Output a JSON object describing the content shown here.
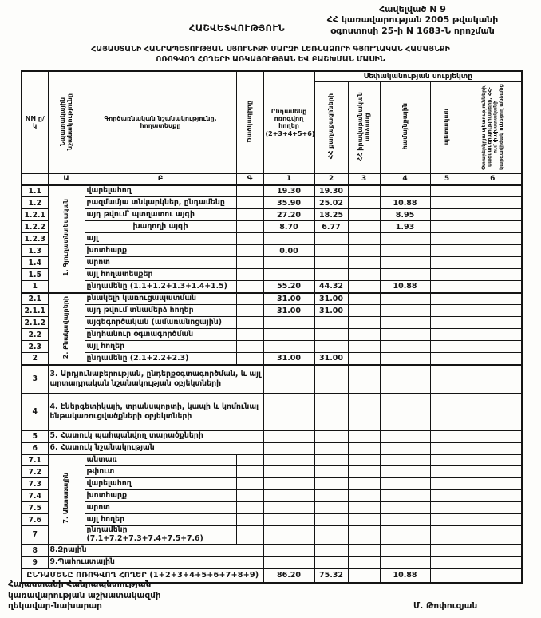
{
  "header": {
    "appendix_line1": "Հավելված N 9",
    "appendix_line2": "ՀՀ կառավարության 2005 թվականի",
    "appendix_line3": "օգոստոսի 25-ի N 1683-Ն որոշման",
    "report_label": "ՀԱՇՎԵՏՎՈՒԹՅՈՒՆ",
    "title_line1": "ՀԱՅԱՍՏԱՆԻ ՀԱՆՐԱՊԵՏՈՒԹՅԱՆ ՍՅՈՒՆԻՔԻ ՄԱՐԶԻ ԼԵՌՆԱՁՈՐԻ ԳՅՈՒՂԱԿԱՆ ՀԱՄԱՅՆՔԻ",
    "title_line2": "ՈՌՈԳՎՈՂ ՀՈՂԵՐԻ ԱՌԿԱՅՈՒԹՅԱՆ ԵՎ ԲԱՇԽՄԱՆ ՄԱՍԻՆ"
  },
  "table": {
    "ownership_header": "Սեփականության սուբյեկտը",
    "columns": {
      "nn": "NN ը/կ",
      "purpose": "Նպատակային նշանակությունը",
      "name": "Գործառնական նշանակությունը, հողատեսքը",
      "code": "Ծածկագիրը",
      "total": "Ընդամենը ոռոգվող հողեր (2+3+4+5+6)",
      "own_citizens": "ՀՀ քաղաքացիների",
      "own_legal": "ՀՀ իրավաբանական անձանց",
      "own_community": "համայնքային",
      "own_state": "պետական",
      "own_foreign": "Օտարերկրյա պետությունների, կազմակերպությունների, ՀՀ-ում փախստականի կարգավիճակ ունեցող անձանց"
    },
    "letter_row": [
      "",
      "Ա",
      "Բ",
      "Գ",
      "1",
      "2",
      "3",
      "4",
      "5",
      "6"
    ],
    "rows": [
      {
        "no": "1.1",
        "label": "վարելահող",
        "values": [
          "19.30",
          "19.30",
          "",
          "",
          "",
          ""
        ],
        "section": {
          "label": "1. Գյուղատնտեսական",
          "span": 9
        },
        "thick": true
      },
      {
        "no": "1.2",
        "label": "բազմամյա տնկարկներ, ընդամենը",
        "values": [
          "35.90",
          "25.02",
          "",
          "10.88",
          "",
          ""
        ]
      },
      {
        "no": "1.2.1",
        "label": "այդ թվում՝ պտղատու այգի",
        "values": [
          "27.20",
          "18.25",
          "",
          "8.95",
          "",
          ""
        ]
      },
      {
        "no": "1.2.2",
        "label": "խաղողի այգի",
        "align": "center",
        "values": [
          "8.70",
          "6.77",
          "",
          "1.93",
          "",
          ""
        ]
      },
      {
        "no": "1.2.3",
        "label": "այլ",
        "values": [
          "",
          "",
          "",
          "",
          "",
          ""
        ]
      },
      {
        "no": "1.3",
        "label": "խոտհարք",
        "values": [
          "0.00",
          "",
          "",
          "",
          "",
          ""
        ]
      },
      {
        "no": "1.4",
        "label": "արոտ",
        "values": [
          "",
          "",
          "",
          "",
          "",
          ""
        ]
      },
      {
        "no": "1.5",
        "label": "այլ հողատեսքեր",
        "values": [
          "",
          "",
          "",
          "",
          "",
          ""
        ]
      },
      {
        "no": "1",
        "label": "ընդամենը (1.1+1.2+1.3+1.4+1.5)",
        "values": [
          "55.20",
          "44.32",
          "",
          "10.88",
          "",
          ""
        ]
      },
      {
        "no": "2.1",
        "label": "բնակելի կառուցապատման",
        "values": [
          "31.00",
          "31.00",
          "",
          "",
          "",
          ""
        ],
        "section": {
          "label": "2. Բնակավայրերի",
          "span": 6
        },
        "thick": true
      },
      {
        "no": "2.1.1",
        "label": "այդ թվում տնամերձ հողեր",
        "values": [
          "31.00",
          "31.00",
          "",
          "",
          "",
          ""
        ]
      },
      {
        "no": "2.1.2",
        "label": "այգեգործական (ամառանոցային)",
        "values": [
          "",
          "",
          "",
          "",
          "",
          ""
        ]
      },
      {
        "no": "2.2",
        "label": "ընդհանուր օգտագործման",
        "values": [
          "",
          "",
          "",
          "",
          "",
          ""
        ]
      },
      {
        "no": "2.3",
        "label": "այլ հողեր",
        "values": [
          "",
          "",
          "",
          "",
          "",
          ""
        ]
      },
      {
        "no": "2",
        "label": "ընդամենը (2.1+2.2+2.3)",
        "values": [
          "31.00",
          "31.00",
          "",
          "",
          "",
          ""
        ]
      },
      {
        "no": "3",
        "label": "3. Արդյունաբերության, ընդերքօգտագործման, և այլ արտադրական նշանակության օբյեկտների",
        "wide": true,
        "h": 36,
        "thick": true,
        "values": [
          "",
          "",
          "",
          "",
          "",
          ""
        ]
      },
      {
        "no": "4",
        "label": "4. Էներգետիկայի, տրանսպորտի, կապի և կոմունալ ենթակառուցվածքների օբյեկտների",
        "wide": true,
        "h": 46,
        "thick": true,
        "values": [
          "",
          "",
          "",
          "",
          "",
          ""
        ]
      },
      {
        "no": "5",
        "label": "5. Հատուկ պահպանվող տարածքների",
        "wide": true,
        "thick": true,
        "values": [
          "",
          "",
          "",
          "",
          "",
          ""
        ]
      },
      {
        "no": "6",
        "label": "6. Հատուկ նշանակության",
        "wide": true,
        "thick": true,
        "values": [
          "",
          "",
          "",
          "",
          "",
          ""
        ]
      },
      {
        "no": "7.1",
        "label": "անտառ",
        "values": [
          "",
          "",
          "",
          "",
          "",
          ""
        ],
        "section": {
          "label": "7. Անտառային",
          "span": 7
        },
        "thick": true
      },
      {
        "no": "7.2",
        "label": "թփուտ",
        "values": [
          "",
          "",
          "",
          "",
          "",
          ""
        ]
      },
      {
        "no": "7.3",
        "label": "վարելահող",
        "values": [
          "",
          "",
          "",
          "",
          "",
          ""
        ]
      },
      {
        "no": "7.4",
        "label": "խոտհարք",
        "values": [
          "",
          "",
          "",
          "",
          "",
          ""
        ]
      },
      {
        "no": "7.5",
        "label": "արոտ",
        "values": [
          "",
          "",
          "",
          "",
          "",
          ""
        ]
      },
      {
        "no": "7.6",
        "label": "այլ հողեր",
        "values": [
          "",
          "",
          "",
          "",
          "",
          ""
        ]
      },
      {
        "no": "7",
        "label": "ընդամենը (7.1+7.2+7.3+7.4+7.5+7.6)",
        "values": [
          "",
          "",
          "",
          "",
          "",
          ""
        ]
      },
      {
        "no": "8",
        "label": "8.Ջրային",
        "wide": true,
        "thick": true,
        "values": [
          "",
          "",
          "",
          "",
          "",
          ""
        ]
      },
      {
        "no": "9",
        "label": "9.Պահուստային",
        "wide": true,
        "thick": true,
        "values": [
          "",
          "",
          "",
          "",
          "",
          ""
        ]
      },
      {
        "grand": true,
        "label": "ԸՆԴԱՄԵՆԸ ՈՌՈԳՎՈՂ ՀՈՂԵՐ (1+2+3+4+5+6+7+8+9)",
        "h": 18,
        "thick": true,
        "values": [
          "86.20",
          "75.32",
          "",
          "10.88",
          "",
          ""
        ]
      }
    ]
  },
  "footer": {
    "org_line1": "Հայաստանի Հանրապետության",
    "org_line2": "կառավարության աշխատակազմի",
    "org_line3": "ղեկավար-նախարար",
    "signer": "Մ. Թոփուզյան"
  }
}
